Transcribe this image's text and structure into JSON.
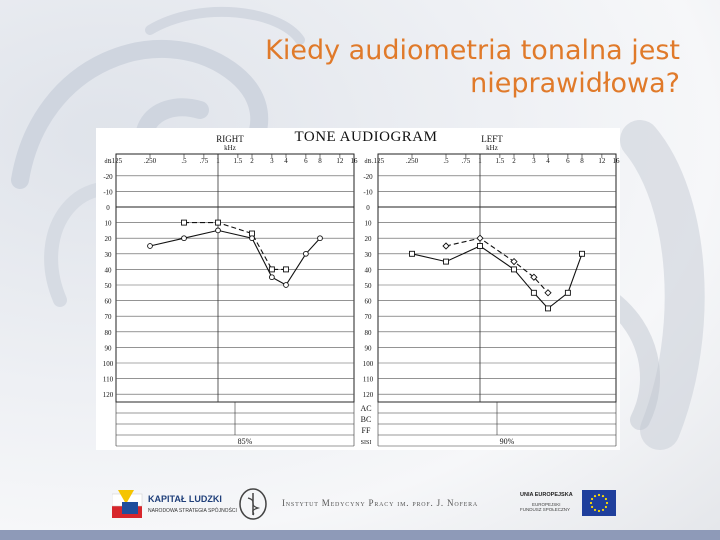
{
  "slide": {
    "title_line1": "Kiedy audiometria tonalna jest",
    "title_line2": "nieprawidłowa?"
  },
  "colors": {
    "title": "#e07a2a",
    "ink": "#111111",
    "footer": "#8e9ab8"
  },
  "chart_data": {
    "type": "line",
    "title": "TONE AUDIOGRAM",
    "panels": [
      {
        "side_label": "RIGHT",
        "unit_label": "kHz",
        "freq_ticks": [
          ".125",
          ".250",
          ".5",
          ".75",
          "1",
          "1.5",
          "2",
          "3",
          "4",
          "6",
          "8",
          "12",
          "16"
        ],
        "series": [
          {
            "style": "dashed-square",
            "points": [
              [
                0.5,
                10
              ],
              [
                1,
                10
              ],
              [
                2,
                17
              ],
              [
                3,
                40
              ],
              [
                4,
                40
              ]
            ]
          },
          {
            "style": "solid-circle",
            "points": [
              [
                0.25,
                25
              ],
              [
                0.5,
                20
              ],
              [
                1,
                15
              ],
              [
                2,
                20
              ],
              [
                3,
                45
              ],
              [
                4,
                50
              ],
              [
                6,
                30
              ],
              [
                8,
                20
              ]
            ]
          }
        ],
        "sisi": "85%"
      },
      {
        "side_label": "LEFT",
        "unit_label": "kHz",
        "freq_ticks": [
          ".125",
          ".250",
          ".5",
          ".75",
          "1",
          "1.5",
          "2",
          "3",
          "4",
          "6",
          "8",
          "12",
          "16"
        ],
        "series": [
          {
            "style": "dashed-diamond",
            "points": [
              [
                0.5,
                25
              ],
              [
                1,
                20
              ],
              [
                2,
                35
              ],
              [
                3,
                45
              ],
              [
                4,
                55
              ]
            ]
          },
          {
            "style": "solid-square",
            "points": [
              [
                0.25,
                30
              ],
              [
                0.5,
                35
              ],
              [
                1,
                25
              ],
              [
                2,
                40
              ],
              [
                3,
                55
              ],
              [
                4,
                65
              ],
              [
                6,
                55
              ],
              [
                8,
                30
              ]
            ]
          }
        ],
        "sisi": "90%"
      }
    ],
    "db_ticks": [
      "-20",
      "-10",
      "0",
      "10",
      "20",
      "30",
      "40",
      "50",
      "60",
      "70",
      "80",
      "90",
      "100",
      "110",
      "120"
    ],
    "db_label": "dB",
    "ylim": [
      -25,
      125
    ],
    "row_labels": [
      "AC",
      "BC",
      "FF",
      "SISI"
    ]
  },
  "logos": {
    "kl_title": "KAPITAŁ LUDZKI",
    "kl_sub": "NARODOWA STRATEGIA SPÓJNOŚCI",
    "institute": "Instytut Medycyny Pracy im. prof. J. Nofera",
    "eu_title": "UNIA EUROPEJSKA",
    "eu_sub1": "EUROPEJSKI",
    "eu_sub2": "FUNDUSZ SPOŁECZNY"
  }
}
